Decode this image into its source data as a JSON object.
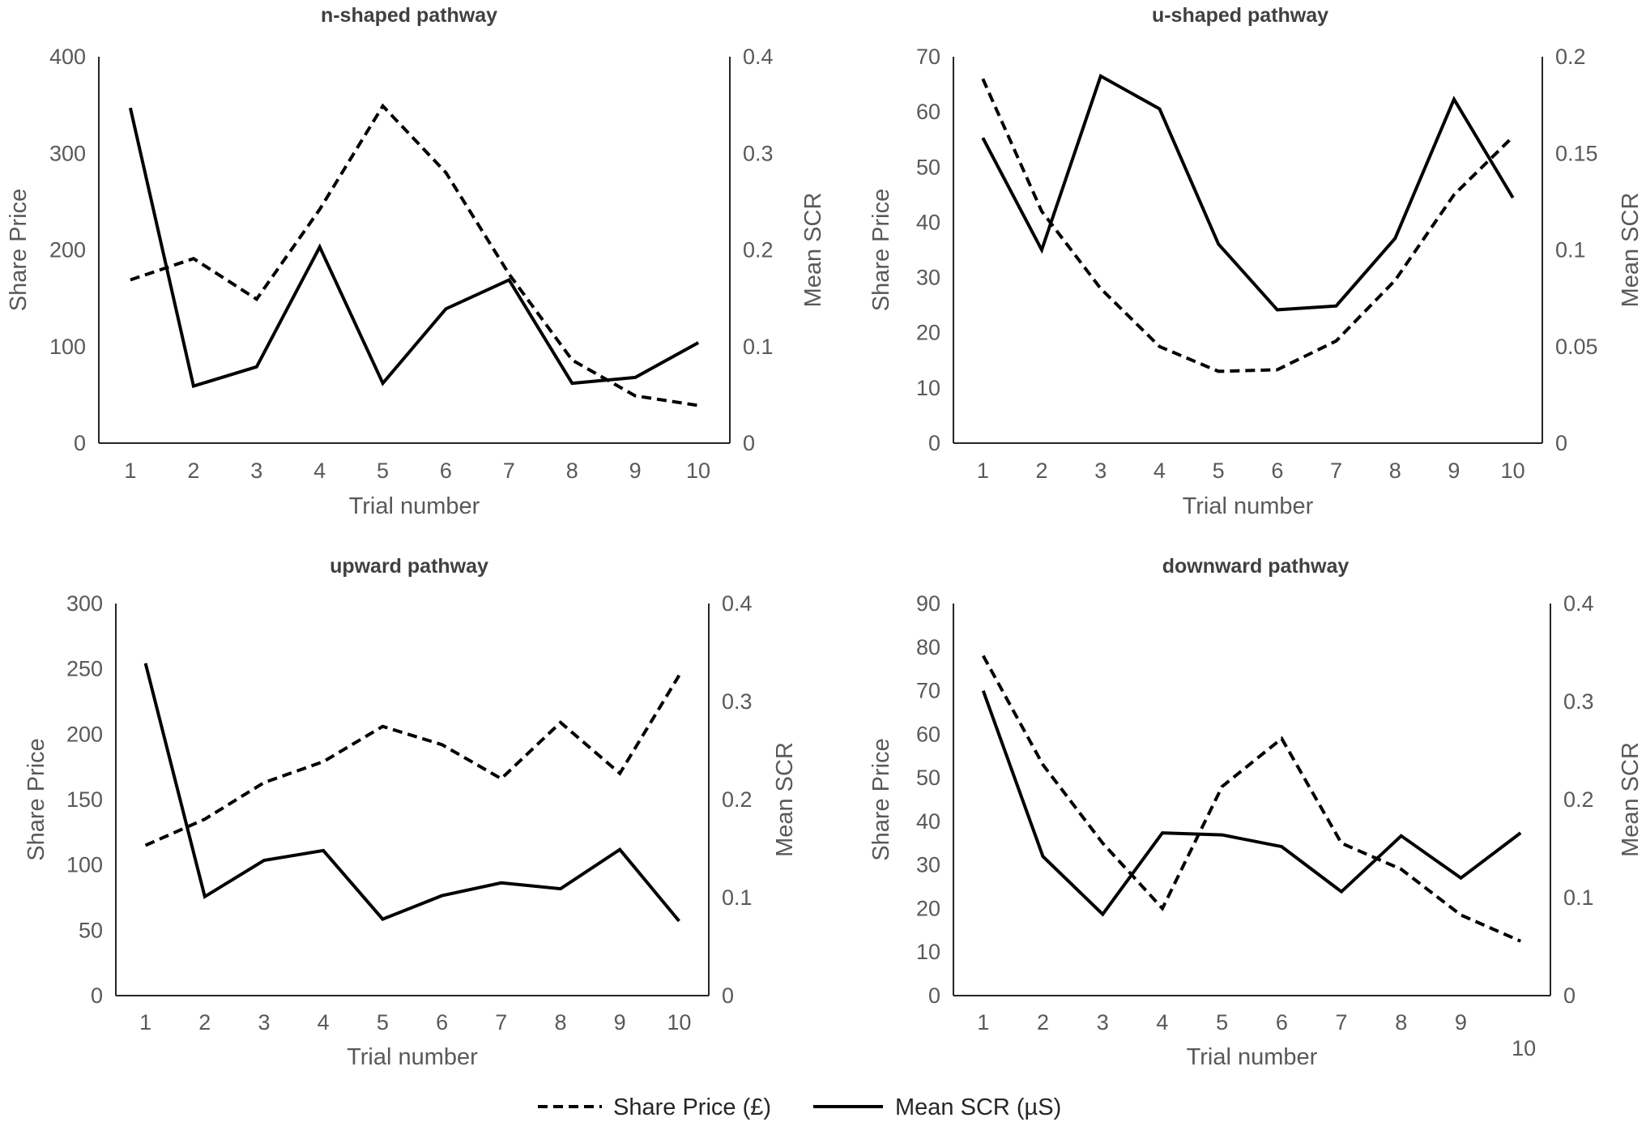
{
  "legend": [
    {
      "name": "Share Price (£)",
      "style": "dashed"
    },
    {
      "name": "Mean SCR (µS)",
      "style": "solid"
    }
  ],
  "chart_data": [
    {
      "type": "line",
      "title": "n-shaped pathway",
      "xlabel": "Trial number",
      "ylabel": "Share Price",
      "y2label": "Mean SCR",
      "categories": [
        "1",
        "2",
        "3",
        "4",
        "5",
        "6",
        "7",
        "8",
        "9",
        "10"
      ],
      "ylim": [
        0,
        400
      ],
      "yticks": [
        "0",
        "100",
        "200",
        "300",
        "400"
      ],
      "y2lim": [
        0,
        0.4
      ],
      "y2ticks": [
        "0",
        "0.1",
        "0.2",
        "0.3",
        "0.4"
      ],
      "series": [
        {
          "name": "Share Price (£)",
          "axis": "left",
          "style": "dashed",
          "values": [
            169,
            191,
            149,
            242,
            349,
            280,
            175,
            86,
            49,
            39
          ]
        },
        {
          "name": "Mean SCR (µS)",
          "axis": "right",
          "style": "solid",
          "values": [
            0.347,
            0.059,
            0.079,
            0.203,
            0.062,
            0.139,
            0.169,
            0.062,
            0.068,
            0.104
          ]
        }
      ]
    },
    {
      "type": "line",
      "title": "u-shaped pathway",
      "xlabel": "Trial number",
      "ylabel": "Share Price",
      "y2label": "Mean SCR",
      "categories": [
        "1",
        "2",
        "3",
        "4",
        "5",
        "6",
        "7",
        "8",
        "9",
        "10"
      ],
      "ylim": [
        0,
        70
      ],
      "yticks": [
        "0",
        "10",
        "20",
        "30",
        "40",
        "50",
        "60",
        "70"
      ],
      "y2lim": [
        0,
        0.2
      ],
      "y2ticks": [
        "0",
        "0.05",
        "0.1",
        "0.15",
        "0.2"
      ],
      "series": [
        {
          "name": "Share Price (£)",
          "axis": "left",
          "style": "dashed",
          "values": [
            66,
            42,
            28,
            17.5,
            13,
            13.3,
            18.5,
            29.5,
            45,
            55.5
          ]
        },
        {
          "name": "Mean SCR (µS)",
          "axis": "right",
          "style": "solid",
          "values": [
            0.158,
            0.1,
            0.19,
            0.173,
            0.103,
            0.069,
            0.071,
            0.106,
            0.178,
            0.127
          ]
        }
      ]
    },
    {
      "type": "line",
      "title": "upward pathway",
      "xlabel": "Trial number",
      "ylabel": "Share Price",
      "y2label": "Mean SCR",
      "categories": [
        "1",
        "2",
        "3",
        "4",
        "5",
        "6",
        "7",
        "8",
        "9",
        "10"
      ],
      "ylim": [
        0,
        300
      ],
      "yticks": [
        "0",
        "50",
        "100",
        "150",
        "200",
        "250",
        "300"
      ],
      "y2lim": [
        0,
        0.4
      ],
      "y2ticks": [
        "0",
        "0.1",
        "0.2",
        "0.3",
        "0.4"
      ],
      "series": [
        {
          "name": "Share Price (£)",
          "axis": "left",
          "style": "dashed",
          "values": [
            115,
            135,
            163,
            179,
            206,
            192,
            166,
            209,
            170,
            245
          ]
        },
        {
          "name": "Mean SCR (µS)",
          "axis": "right",
          "style": "solid",
          "values": [
            0.339,
            0.101,
            0.138,
            0.148,
            0.078,
            0.102,
            0.115,
            0.109,
            0.149,
            0.076
          ]
        }
      ]
    },
    {
      "type": "line",
      "title": "downward pathway",
      "xlabel": "Trial number",
      "ylabel": "Share Price",
      "y2label": "Mean SCR",
      "categories": [
        "1",
        "2",
        "3",
        "4",
        "5",
        "6",
        "7",
        "8",
        "9",
        "10"
      ],
      "ylim": [
        0,
        90
      ],
      "yticks": [
        "0",
        "10",
        "20",
        "30",
        "40",
        "50",
        "60",
        "70",
        "80",
        "90"
      ],
      "y2lim": [
        0,
        0.4
      ],
      "y2ticks": [
        "0",
        "0.1",
        "0.2",
        "0.3",
        "0.4"
      ],
      "series": [
        {
          "name": "Share Price (£)",
          "axis": "left",
          "style": "dashed",
          "values": [
            78,
            53,
            35,
            20,
            48,
            59,
            35,
            29,
            18.5,
            12.5
          ]
        },
        {
          "name": "Mean SCR (µS)",
          "axis": "right",
          "style": "solid",
          "values": [
            0.311,
            0.142,
            0.083,
            0.166,
            0.164,
            0.152,
            0.106,
            0.163,
            0.12,
            0.166
          ]
        }
      ]
    }
  ]
}
